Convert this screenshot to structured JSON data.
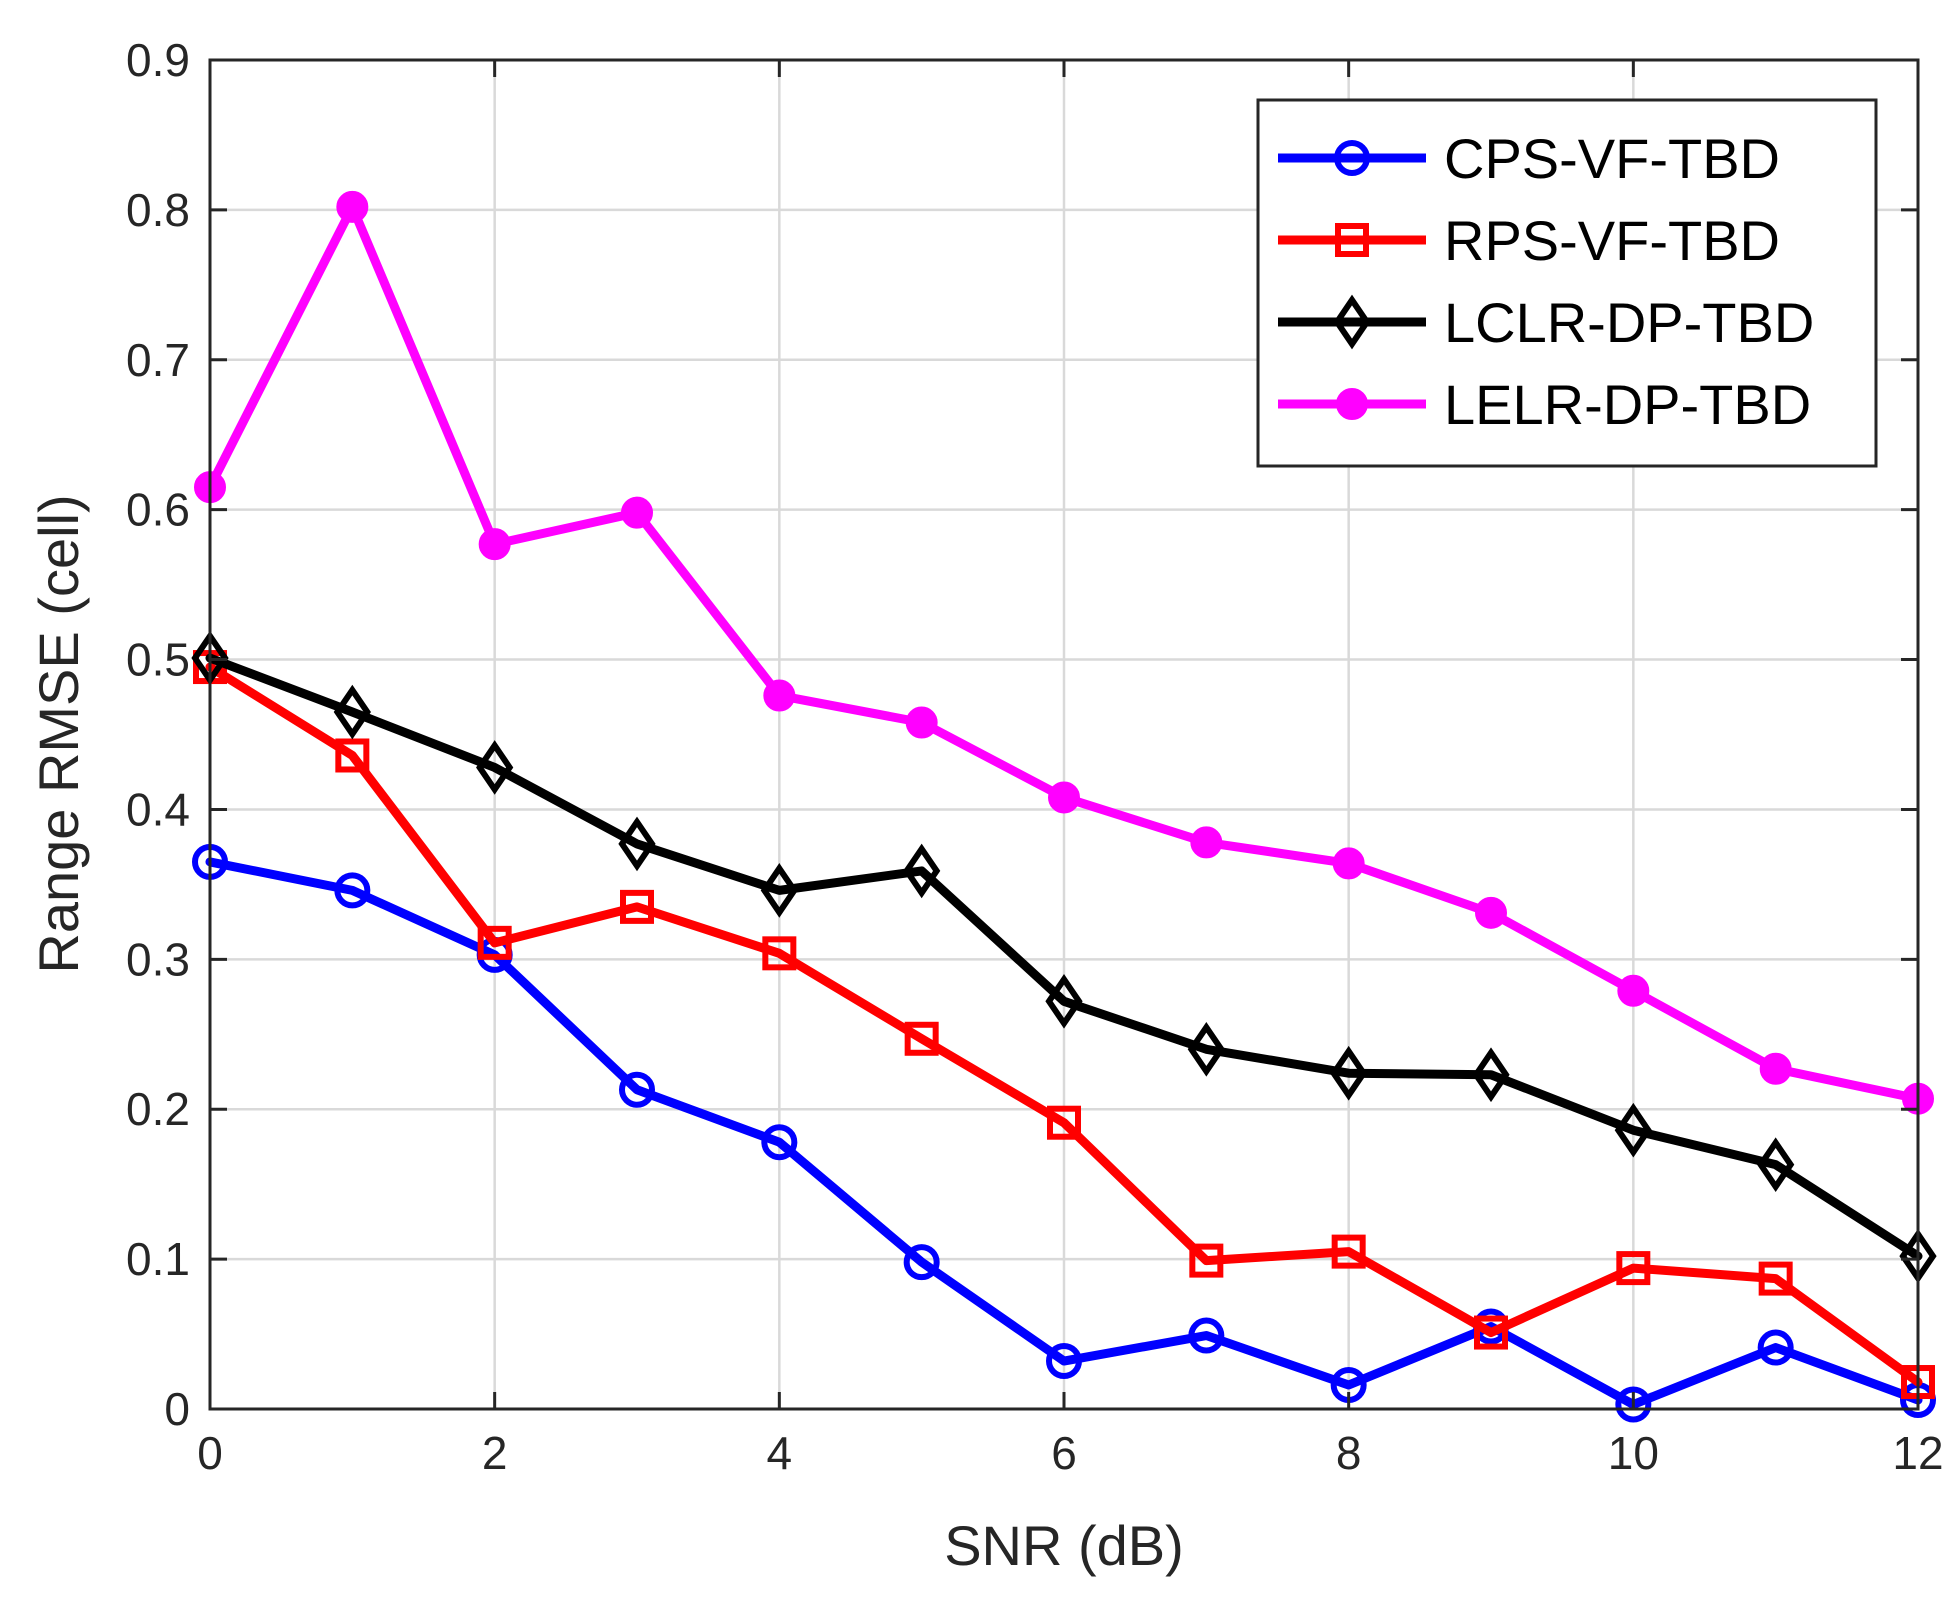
{
  "chart_data": {
    "type": "line",
    "title": "",
    "xlabel": "SNR (dB)",
    "ylabel": "Range RMSE (cell)",
    "xlim": [
      0,
      12
    ],
    "ylim": [
      0,
      0.9
    ],
    "x": [
      0,
      1,
      2,
      3,
      4,
      5,
      6,
      7,
      8,
      9,
      10,
      11,
      12
    ],
    "x_ticks": [
      0,
      2,
      4,
      6,
      8,
      10,
      12
    ],
    "x_tick_labels": [
      "0",
      "2",
      "4",
      "6",
      "8",
      "10",
      "12"
    ],
    "y_ticks": [
      0,
      0.1,
      0.2,
      0.3,
      0.4,
      0.5,
      0.6,
      0.7,
      0.8,
      0.9
    ],
    "y_tick_labels": [
      "0",
      "0.1",
      "0.2",
      "0.3",
      "0.4",
      "0.5",
      "0.6",
      "0.7",
      "0.8",
      "0.9"
    ],
    "grid": true,
    "legend_position": "top-right",
    "series": [
      {
        "name": "CPS-VF-TBD",
        "color": "#0000ff",
        "marker": "circle-open",
        "values": [
          0.365,
          0.346,
          0.303,
          0.213,
          0.178,
          0.098,
          0.032,
          0.049,
          0.016,
          0.055,
          0.003,
          0.041,
          0.006
        ]
      },
      {
        "name": "RPS-VF-TBD",
        "color": "#ff0000",
        "marker": "square-open",
        "values": [
          0.495,
          0.436,
          0.311,
          0.335,
          0.304,
          0.247,
          0.191,
          0.099,
          0.105,
          0.051,
          0.094,
          0.087,
          0.018
        ]
      },
      {
        "name": "LCLR-DP-TBD",
        "color": "#000000",
        "marker": "diamond-open",
        "values": [
          0.501,
          0.465,
          0.428,
          0.377,
          0.346,
          0.359,
          0.272,
          0.24,
          0.224,
          0.223,
          0.186,
          0.163,
          0.102
        ]
      },
      {
        "name": "LELR-DP-TBD",
        "color": "#ff00ff",
        "marker": "circle-filled",
        "values": [
          0.615,
          0.802,
          0.577,
          0.598,
          0.476,
          0.458,
          0.408,
          0.378,
          0.364,
          0.331,
          0.279,
          0.227,
          0.207
        ]
      }
    ]
  }
}
